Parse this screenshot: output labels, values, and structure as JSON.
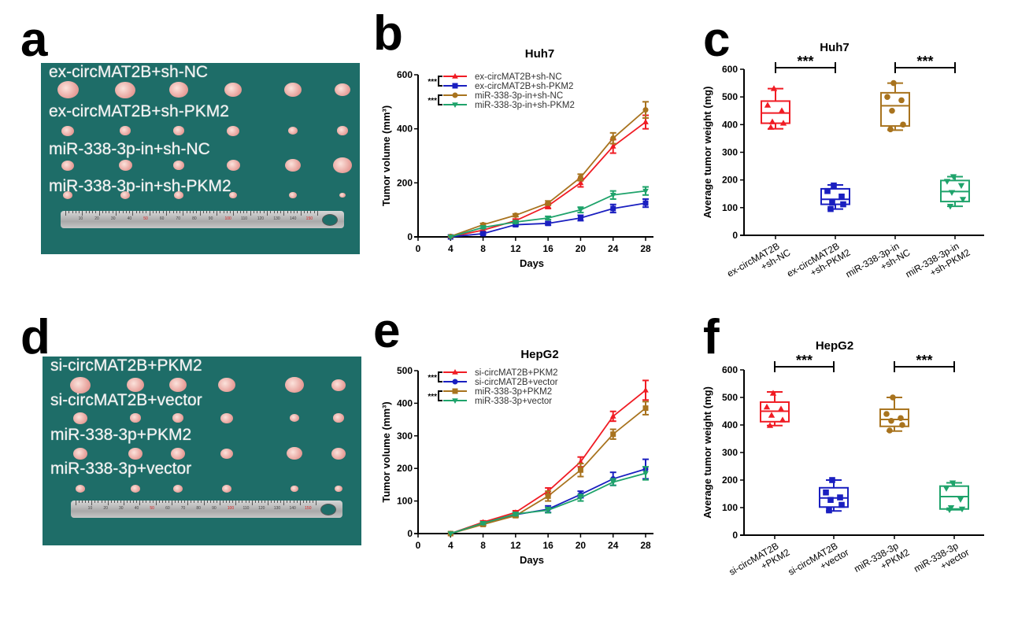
{
  "panels": {
    "a": {
      "letter": "a",
      "labels": [
        "ex-circMAT2B+sh-NC",
        "ex-circMAT2B+sh-PKM2",
        "miR-338-3p-in+sh-NC",
        "miR-338-3p-in+sh-PKM2"
      ]
    },
    "d": {
      "letter": "d",
      "labels": [
        "si-circMAT2B+PKM2",
        "si-circMAT2B+vector",
        "miR-338-3p+PKM2",
        "miR-338-3p+vector"
      ]
    },
    "b": {
      "letter": "b"
    },
    "c": {
      "letter": "c"
    },
    "e": {
      "letter": "e"
    },
    "f": {
      "letter": "f"
    }
  },
  "ruler": {
    "numbers": [
      "10",
      "20",
      "30",
      "40",
      "50",
      "60",
      "70",
      "80",
      "90",
      "100",
      "110",
      "120",
      "130",
      "140",
      "150"
    ],
    "red_numbers": [
      "50",
      "100",
      "150"
    ]
  },
  "colors": {
    "red": "#f01c24",
    "blue": "#1a1fc0",
    "brown": "#a8731e",
    "green": "#1fa36b"
  },
  "chart_data": [
    {
      "id": "b",
      "type": "line",
      "title": "Huh7",
      "xlabel": "Days",
      "ylabel": "Tumor volume (mm³)",
      "x": [
        4,
        8,
        12,
        16,
        20,
        24,
        28
      ],
      "xticks": [
        0,
        4,
        8,
        12,
        16,
        20,
        24,
        28
      ],
      "yticks": [
        0,
        200,
        400,
        600
      ],
      "xlim": [
        0,
        28
      ],
      "ylim": [
        0,
        600
      ],
      "significance": [
        "***",
        "***"
      ],
      "series": [
        {
          "name": "ex-circMAT2B+sh-NC",
          "color": "#f01c24",
          "marker": "triangle-up",
          "values": [
            0,
            25,
            60,
            115,
            200,
            335,
            425
          ],
          "errors": [
            0,
            5,
            6,
            10,
            15,
            25,
            25
          ]
        },
        {
          "name": "ex-circMAT2B+sh-PKM2",
          "color": "#1a1fc0",
          "marker": "square",
          "values": [
            0,
            12,
            45,
            50,
            70,
            105,
            125
          ],
          "errors": [
            0,
            4,
            5,
            6,
            10,
            15,
            15
          ]
        },
        {
          "name": "miR-338-3p-in+sh-NC",
          "color": "#a8731e",
          "marker": "circle",
          "values": [
            2,
            45,
            80,
            125,
            220,
            365,
            470
          ],
          "errors": [
            0,
            5,
            5,
            8,
            12,
            20,
            30
          ]
        },
        {
          "name": "miR-338-3p-in+sh-PKM2",
          "color": "#1fa36b",
          "marker": "triangle-down",
          "values": [
            0,
            35,
            55,
            70,
            100,
            155,
            170
          ],
          "errors": [
            0,
            4,
            5,
            6,
            10,
            15,
            15
          ]
        }
      ]
    },
    {
      "id": "c",
      "type": "box",
      "title": "Huh7",
      "ylabel": "Average tumor weight (mg)",
      "yticks": [
        0,
        100,
        200,
        300,
        400,
        500,
        600
      ],
      "ylim": [
        0,
        600
      ],
      "categories": [
        "ex-circMAT2B\n+sh-NC",
        "ex-circMAT2B\n+sh-PKM2",
        "miR-338-3p-in\n+sh-NC",
        "miR-338-3p-in\n+sh-PKM2"
      ],
      "significance": [
        {
          "between": [
            0,
            1
          ],
          "label": "***"
        },
        {
          "between": [
            2,
            3
          ],
          "label": "***"
        }
      ],
      "boxes": [
        {
          "color": "#f01c24",
          "marker": "triangle-up",
          "min": 385,
          "q1": 405,
          "median": 442,
          "q3": 485,
          "max": 530,
          "points": [
            530,
            470,
            450,
            410,
            405,
            390
          ]
        },
        {
          "color": "#1a1fc0",
          "marker": "square",
          "min": 95,
          "q1": 112,
          "median": 130,
          "q3": 168,
          "max": 182,
          "points": [
            180,
            160,
            140,
            118,
            112,
            95
          ]
        },
        {
          "color": "#a8731e",
          "marker": "circle",
          "min": 380,
          "q1": 395,
          "median": 468,
          "q3": 515,
          "max": 550,
          "points": [
            550,
            500,
            488,
            450,
            400,
            383
          ]
        },
        {
          "color": "#1fa36b",
          "marker": "triangle-down",
          "min": 105,
          "q1": 122,
          "median": 158,
          "q3": 198,
          "max": 212,
          "points": [
            212,
            195,
            180,
            155,
            130,
            105
          ]
        }
      ]
    },
    {
      "id": "e",
      "type": "line",
      "title": "HepG2",
      "xlabel": "Days",
      "ylabel": "Tumor volume (mm³)",
      "x": [
        4,
        8,
        12,
        16,
        20,
        24,
        28
      ],
      "xticks": [
        0,
        4,
        8,
        12,
        16,
        20,
        24,
        28
      ],
      "yticks": [
        0,
        100,
        200,
        300,
        400,
        500
      ],
      "xlim": [
        0,
        28
      ],
      "ylim": [
        0,
        500
      ],
      "significance": [
        "***",
        "***"
      ],
      "series": [
        {
          "name": "si-circMAT2B+PKM2",
          "color": "#f01c24",
          "marker": "triangle-up",
          "values": [
            0,
            35,
            65,
            130,
            220,
            360,
            440
          ],
          "errors": [
            0,
            4,
            5,
            10,
            15,
            15,
            30
          ]
        },
        {
          "name": "si-circMAT2B+vector",
          "color": "#1a1fc0",
          "marker": "circle",
          "values": [
            0,
            30,
            58,
            75,
            120,
            168,
            198
          ],
          "errors": [
            0,
            4,
            5,
            10,
            10,
            20,
            30
          ]
        },
        {
          "name": "miR-338-3p+PKM2",
          "color": "#a8731e",
          "marker": "square",
          "values": [
            0,
            28,
            55,
            115,
            195,
            305,
            385
          ],
          "errors": [
            0,
            4,
            5,
            15,
            20,
            15,
            20
          ]
        },
        {
          "name": "miR-338-3p+vector",
          "color": "#1fa36b",
          "marker": "triangle-down",
          "values": [
            0,
            32,
            60,
            72,
            110,
            158,
            185
          ],
          "errors": [
            0,
            4,
            5,
            8,
            10,
            10,
            20
          ]
        }
      ]
    },
    {
      "id": "f",
      "type": "box",
      "title": "HepG2",
      "ylabel": "Average tumor weight (mg)",
      "yticks": [
        0,
        100,
        200,
        300,
        400,
        500,
        600
      ],
      "ylim": [
        0,
        600
      ],
      "categories": [
        "si-circMAT2B\n+PKM2",
        "si-circMAT2B\n+vector",
        "miR-338-3p\n+PKM2",
        "miR-338-3p\n+vector"
      ],
      "significance": [
        {
          "between": [
            0,
            1
          ],
          "label": "***"
        },
        {
          "between": [
            2,
            3
          ],
          "label": "***"
        }
      ],
      "boxes": [
        {
          "color": "#f01c24",
          "marker": "triangle-up",
          "min": 398,
          "q1": 412,
          "median": 450,
          "q3": 483,
          "max": 520,
          "points": [
            515,
            465,
            458,
            435,
            418,
            398
          ]
        },
        {
          "color": "#1a1fc0",
          "marker": "square",
          "min": 88,
          "q1": 102,
          "median": 135,
          "q3": 172,
          "max": 200,
          "points": [
            200,
            155,
            137,
            128,
            110,
            90
          ]
        },
        {
          "color": "#a8731e",
          "marker": "circle",
          "min": 378,
          "q1": 395,
          "median": 420,
          "q3": 457,
          "max": 500,
          "points": [
            500,
            440,
            425,
            415,
            400,
            380
          ]
        },
        {
          "color": "#1fa36b",
          "marker": "triangle-down",
          "min": 92,
          "q1": 95,
          "median": 140,
          "q3": 178,
          "max": 190,
          "points": [
            190,
            170,
            130,
            100,
            95,
            92
          ]
        }
      ]
    }
  ]
}
